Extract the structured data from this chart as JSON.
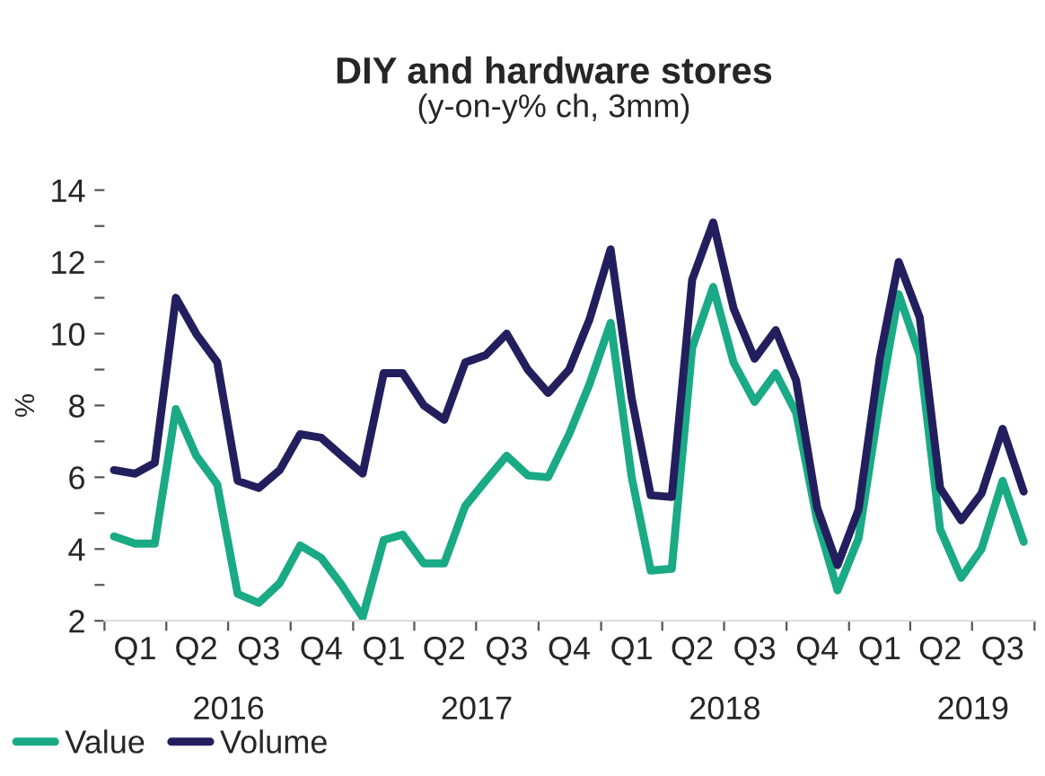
{
  "chart_data": {
    "type": "line",
    "title": "DIY and hardware stores",
    "subtitle": "(y-on-y% ch, 3mm)",
    "ylabel": "%",
    "x": [
      "2016-01-15",
      "2016-02-15",
      "2016-03-15",
      "2016-04-15",
      "2016-05-15",
      "2016-06-15",
      "2016-07-15",
      "2016-08-15",
      "2016-09-15",
      "2016-10-15",
      "2016-11-15",
      "2016-12-15",
      "2017-01-15",
      "2017-02-15",
      "2017-03-15",
      "2017-04-15",
      "2017-05-15",
      "2017-06-15",
      "2017-07-15",
      "2017-08-15",
      "2017-09-15",
      "2017-10-15",
      "2017-11-15",
      "2017-12-15",
      "2018-01-15",
      "2018-02-15",
      "2018-03-15",
      "2018-04-15",
      "2018-05-15",
      "2018-06-15",
      "2018-07-15",
      "2018-08-15",
      "2018-09-15",
      "2018-10-15",
      "2018-11-15",
      "2018-12-15",
      "2019-01-15",
      "2019-02-15",
      "2019-03-15",
      "2019-04-15",
      "2019-05-15",
      "2019-06-15",
      "2019-07-15",
      "2019-08-15",
      "2019-09-15"
    ],
    "series": [
      {
        "name": "Value",
        "color": "#1aaa85",
        "values": [
          4.35,
          4.15,
          4.15,
          7.9,
          6.6,
          5.8,
          2.75,
          2.5,
          3.05,
          4.1,
          3.75,
          3.0,
          2.1,
          4.25,
          4.4,
          3.6,
          3.6,
          5.2,
          5.9,
          6.6,
          6.05,
          6.0,
          7.2,
          8.6,
          10.3,
          6.0,
          3.4,
          3.45,
          9.6,
          11.3,
          9.2,
          8.1,
          8.9,
          7.8,
          4.8,
          2.85,
          4.3,
          8.1,
          11.1,
          9.4,
          4.55,
          3.2,
          4.0,
          5.9,
          4.2
        ]
      },
      {
        "name": "Volume",
        "color": "#231f5e",
        "values": [
          6.2,
          6.1,
          6.4,
          11.0,
          10.0,
          9.2,
          5.9,
          5.7,
          6.2,
          7.2,
          7.1,
          6.6,
          6.1,
          8.9,
          8.9,
          8.0,
          7.6,
          9.2,
          9.4,
          10.0,
          9.0,
          8.35,
          9.0,
          10.4,
          12.35,
          8.2,
          5.5,
          5.45,
          11.5,
          13.1,
          10.7,
          9.3,
          10.1,
          8.7,
          5.15,
          3.55,
          5.1,
          9.3,
          12.0,
          10.45,
          5.7,
          4.8,
          5.55,
          7.35,
          5.6
        ]
      }
    ],
    "xlim": [
      "2016-01-01",
      "2019-10-01"
    ],
    "xticks": [
      {
        "value": "2016-01-01",
        "label": null
      },
      {
        "value": "2016-02-15",
        "label": "Q1"
      },
      {
        "value": "2016-04-01",
        "label": null
      },
      {
        "value": "2016-05-15",
        "label": "Q2"
      },
      {
        "value": "2016-07-01",
        "label": null
      },
      {
        "value": "2016-08-15",
        "label": "Q3"
      },
      {
        "value": "2016-10-01",
        "label": null
      },
      {
        "value": "2016-11-15",
        "label": "Q4"
      },
      {
        "value": "2017-01-01",
        "label": null
      },
      {
        "value": "2017-02-15",
        "label": "Q1"
      },
      {
        "value": "2017-04-01",
        "label": null
      },
      {
        "value": "2017-05-15",
        "label": "Q2"
      },
      {
        "value": "2017-07-01",
        "label": null
      },
      {
        "value": "2017-08-15",
        "label": "Q3"
      },
      {
        "value": "2017-10-01",
        "label": null
      },
      {
        "value": "2017-11-15",
        "label": "Q4"
      },
      {
        "value": "2018-01-01",
        "label": null
      },
      {
        "value": "2018-02-15",
        "label": "Q1"
      },
      {
        "value": "2018-04-01",
        "label": null
      },
      {
        "value": "2018-05-15",
        "label": "Q2"
      },
      {
        "value": "2018-07-01",
        "label": null
      },
      {
        "value": "2018-08-15",
        "label": "Q3"
      },
      {
        "value": "2018-10-01",
        "label": null
      },
      {
        "value": "2018-11-15",
        "label": "Q4"
      },
      {
        "value": "2019-01-01",
        "label": null
      },
      {
        "value": "2019-02-15",
        "label": "Q1"
      },
      {
        "value": "2019-04-01",
        "label": null
      },
      {
        "value": "2019-05-15",
        "label": "Q2"
      },
      {
        "value": "2019-07-01",
        "label": null
      },
      {
        "value": "2019-08-15",
        "label": "Q3"
      },
      {
        "value": "2019-10-01",
        "label": null
      }
    ],
    "ylim": [
      2,
      14
    ],
    "annotations": [
      "2016",
      "2017",
      "2018",
      "2019"
    ],
    "yticks": [
      2,
      {
        "value": 3,
        "label": null
      },
      4,
      {
        "value": 5,
        "label": null
      },
      6,
      {
        "value": 7,
        "label": null
      },
      8,
      {
        "value": 9,
        "label": null
      },
      10,
      {
        "value": 11,
        "label": null
      },
      12,
      {
        "value": 13,
        "label": null
      },
      14
    ],
    "grid": false,
    "legend": "bottom left",
    "marker": "none",
    "line_style": "solid"
  }
}
